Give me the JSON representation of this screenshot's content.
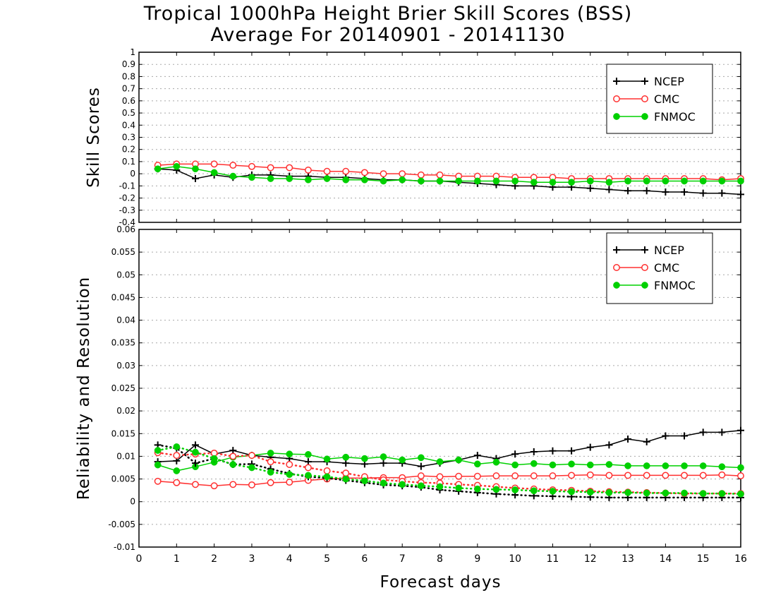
{
  "title_line1": "Tropical 1000hPa Height Brier Skill Scores (BSS)",
  "title_line2": "Average For 20140901 - 20141130",
  "xlabel": "Forecast days",
  "colors": {
    "NCEP": "#000000",
    "CMC": "#ff3030",
    "FNMOC": "#00d000"
  },
  "chart_data": [
    {
      "type": "line",
      "ylabel": "Skill Scores",
      "ylim": [
        -0.4,
        1
      ],
      "yticks": [
        "1",
        "0.9",
        "0.8",
        "0.7",
        "0.6",
        "0.5",
        "0.4",
        "0.3",
        "0.2",
        "0.1",
        "0",
        "-0.1",
        "-0.2",
        "-0.3",
        "-0.4"
      ],
      "xlim": [
        0,
        16
      ],
      "xticks": [
        "0",
        "1",
        "2",
        "3",
        "4",
        "5",
        "6",
        "7",
        "8",
        "9",
        "10",
        "11",
        "12",
        "13",
        "14",
        "15",
        "16"
      ],
      "grid": true,
      "legend_position": "top-right",
      "x": [
        0.5,
        1,
        1.5,
        2,
        2.5,
        3,
        3.5,
        4,
        4.5,
        5,
        5.5,
        6,
        6.5,
        7,
        7.5,
        8,
        8.5,
        9,
        9.5,
        10,
        10.5,
        11,
        11.5,
        12,
        12.5,
        13,
        13.5,
        14,
        14.5,
        15,
        15.5,
        16
      ],
      "series": [
        {
          "name": "NCEP",
          "marker": "plus",
          "values": [
            0.04,
            0.03,
            -0.04,
            -0.01,
            -0.03,
            -0.01,
            -0.01,
            -0.02,
            -0.02,
            -0.03,
            -0.03,
            -0.04,
            -0.05,
            -0.05,
            -0.06,
            -0.06,
            -0.07,
            -0.08,
            -0.09,
            -0.1,
            -0.1,
            -0.11,
            -0.11,
            -0.12,
            -0.13,
            -0.14,
            -0.14,
            -0.15,
            -0.15,
            -0.16,
            -0.16,
            -0.17
          ]
        },
        {
          "name": "CMC",
          "marker": "open-circle",
          "values": [
            0.07,
            0.08,
            0.08,
            0.08,
            0.07,
            0.06,
            0.05,
            0.05,
            0.03,
            0.02,
            0.02,
            0.01,
            0.0,
            0.0,
            -0.01,
            -0.01,
            -0.02,
            -0.02,
            -0.02,
            -0.03,
            -0.03,
            -0.03,
            -0.04,
            -0.04,
            -0.04,
            -0.04,
            -0.04,
            -0.04,
            -0.04,
            -0.04,
            -0.05,
            -0.04
          ]
        },
        {
          "name": "FNMOC",
          "marker": "filled-circle",
          "values": [
            0.04,
            0.06,
            0.04,
            0.01,
            -0.02,
            -0.03,
            -0.04,
            -0.04,
            -0.05,
            -0.04,
            -0.05,
            -0.05,
            -0.06,
            -0.05,
            -0.06,
            -0.06,
            -0.06,
            -0.06,
            -0.06,
            -0.06,
            -0.07,
            -0.07,
            -0.07,
            -0.06,
            -0.07,
            -0.06,
            -0.06,
            -0.06,
            -0.06,
            -0.06,
            -0.06,
            -0.06
          ]
        }
      ]
    },
    {
      "type": "line",
      "ylabel": "Reliability and Resolution",
      "ylim": [
        -0.01,
        0.06
      ],
      "yticks": [
        "0.06",
        "0.055",
        "0.05",
        "0.045",
        "0.04",
        "0.035",
        "0.03",
        "0.025",
        "0.02",
        "0.015",
        "0.01",
        "0.005",
        "0",
        "-0.005",
        "-0.01"
      ],
      "xlim": [
        0,
        16
      ],
      "xticks": [
        "0",
        "1",
        "2",
        "3",
        "4",
        "5",
        "6",
        "7",
        "8",
        "9",
        "10",
        "11",
        "12",
        "13",
        "14",
        "15",
        "16"
      ],
      "grid": true,
      "legend_position": "top-right",
      "x": [
        0.5,
        1,
        1.5,
        2,
        2.5,
        3,
        3.5,
        4,
        4.5,
        5,
        5.5,
        6,
        6.5,
        7,
        7.5,
        8,
        8.5,
        9,
        9.5,
        10,
        10.5,
        11,
        11.5,
        12,
        12.5,
        13,
        13.5,
        14,
        14.5,
        15,
        15.5,
        16
      ],
      "series": [
        {
          "name": "NCEP",
          "role": "resolution",
          "style": "solid",
          "marker": "plus",
          "values": [
            0.0088,
            0.009,
            0.0125,
            0.0105,
            0.0113,
            0.0102,
            0.0098,
            0.0095,
            0.0088,
            0.0088,
            0.0085,
            0.0083,
            0.0085,
            0.0085,
            0.0078,
            0.0085,
            0.0092,
            0.0102,
            0.0095,
            0.0105,
            0.011,
            0.0112,
            0.0112,
            0.012,
            0.0125,
            0.0138,
            0.0132,
            0.0145,
            0.0145,
            0.0153,
            0.0153,
            0.0157
          ]
        },
        {
          "name": "CMC",
          "role": "resolution",
          "style": "solid",
          "marker": "open-circle",
          "values": [
            0.0045,
            0.0042,
            0.0038,
            0.0035,
            0.0038,
            0.0037,
            0.0042,
            0.0043,
            0.0047,
            0.005,
            0.0052,
            0.0052,
            0.0053,
            0.0053,
            0.0057,
            0.0055,
            0.0056,
            0.0056,
            0.0057,
            0.0057,
            0.0057,
            0.0057,
            0.0058,
            0.0059,
            0.0058,
            0.0058,
            0.0058,
            0.0058,
            0.0058,
            0.0058,
            0.0059,
            0.0057
          ]
        },
        {
          "name": "FNMOC",
          "role": "resolution",
          "style": "solid",
          "marker": "filled-circle",
          "values": [
            0.0081,
            0.0068,
            0.0077,
            0.0087,
            0.0098,
            0.0102,
            0.0107,
            0.0105,
            0.0104,
            0.0094,
            0.0098,
            0.0095,
            0.0099,
            0.0092,
            0.0097,
            0.0088,
            0.0092,
            0.0083,
            0.0087,
            0.0081,
            0.0084,
            0.0081,
            0.0083,
            0.0081,
            0.0082,
            0.0079,
            0.0079,
            0.0079,
            0.0079,
            0.0079,
            0.0077,
            0.0075
          ]
        },
        {
          "name": "NCEP",
          "role": "reliability",
          "style": "dotted",
          "marker": "plus",
          "values": [
            0.0125,
            0.0118,
            0.0085,
            0.0095,
            0.0082,
            0.0083,
            0.0072,
            0.0062,
            0.0055,
            0.0052,
            0.0047,
            0.0042,
            0.0037,
            0.0035,
            0.0032,
            0.0026,
            0.0023,
            0.002,
            0.0017,
            0.0015,
            0.0013,
            0.0012,
            0.0011,
            0.001,
            0.0009,
            0.0009,
            0.0009,
            0.0009,
            0.0009,
            0.0009,
            0.0009,
            0.0009
          ]
        },
        {
          "name": "CMC",
          "role": "reliability",
          "style": "dotted",
          "marker": "open-circle",
          "values": [
            0.0108,
            0.0102,
            0.0105,
            0.0107,
            0.01,
            0.0102,
            0.0088,
            0.0082,
            0.0075,
            0.0068,
            0.0063,
            0.0055,
            0.0048,
            0.0045,
            0.0042,
            0.0041,
            0.0038,
            0.0036,
            0.0033,
            0.003,
            0.0028,
            0.0026,
            0.0025,
            0.0023,
            0.0022,
            0.0021,
            0.002,
            0.0019,
            0.0018,
            0.0018,
            0.0018,
            0.0018
          ]
        },
        {
          "name": "FNMOC",
          "role": "reliability",
          "style": "dotted",
          "marker": "filled-circle",
          "values": [
            0.0113,
            0.0121,
            0.0109,
            0.0095,
            0.0082,
            0.0075,
            0.0065,
            0.006,
            0.0058,
            0.0055,
            0.005,
            0.0046,
            0.0041,
            0.0038,
            0.0035,
            0.0033,
            0.003,
            0.0028,
            0.0027,
            0.0026,
            0.0024,
            0.0023,
            0.0022,
            0.0021,
            0.002,
            0.002,
            0.0019,
            0.0019,
            0.0019,
            0.0018,
            0.0018,
            0.0017
          ]
        }
      ]
    }
  ]
}
